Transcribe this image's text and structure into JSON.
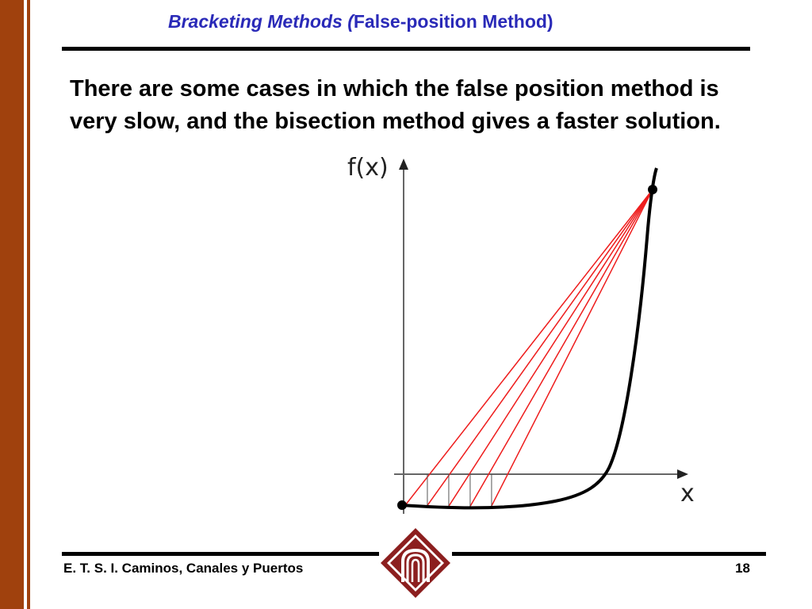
{
  "slide": {
    "title_italic": "Bracketing Methods  (",
    "title_regular": "False-position Method)",
    "body": "There are some cases in which the false position method is very slow, and the bisection method gives a faster solution."
  },
  "figure": {
    "y_label": "f(x)",
    "x_label": "x",
    "colors": {
      "curve": "#000000",
      "secant": "#ee1c1c",
      "drop": "#555555"
    },
    "secant_count": 5
  },
  "footer": {
    "institution": "E. T. S. I. Caminos, Canales y Puertos",
    "page_number": "18"
  },
  "theme": {
    "accent": "#a0410d",
    "title_color": "#2a2ab8"
  }
}
